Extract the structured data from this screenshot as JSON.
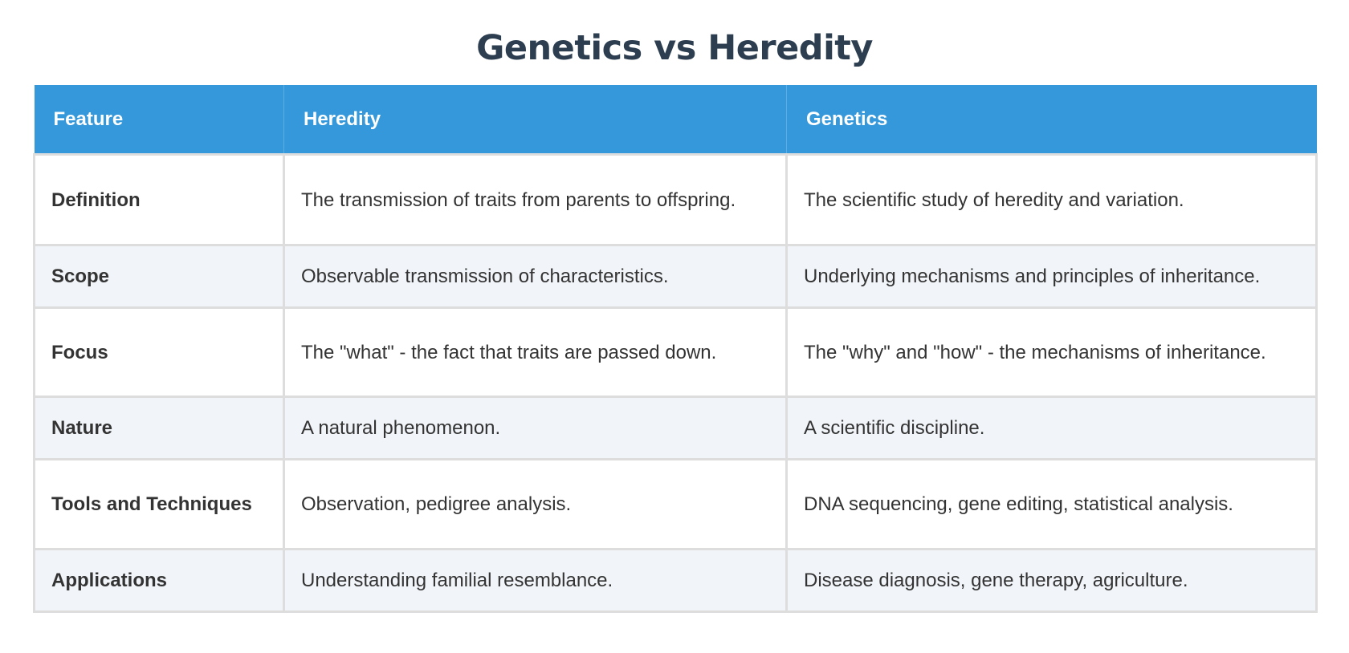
{
  "page": {
    "title": "Genetics vs Heredity"
  },
  "colors": {
    "title": "#2c3e50",
    "header_bg": "#3498db",
    "header_text": "#ffffff",
    "alt_row_bg": "#f1f4f8",
    "border": "#dddddd",
    "body_text": "#333333"
  },
  "table": {
    "headers": [
      "Feature",
      "Heredity",
      "Genetics"
    ],
    "rows": [
      {
        "feature": "Definition",
        "heredity": "The transmission of traits from parents to offspring.",
        "genetics": "The scientific study of heredity and variation."
      },
      {
        "feature": "Scope",
        "heredity": "Observable transmission of characteristics.",
        "genetics": "Underlying mechanisms and principles of inheritance."
      },
      {
        "feature": "Focus",
        "heredity": "The \"what\" - the fact that traits are passed down.",
        "genetics": "The \"why\" and \"how\" - the mechanisms of inheritance."
      },
      {
        "feature": "Nature",
        "heredity": "A natural phenomenon.",
        "genetics": "A scientific discipline."
      },
      {
        "feature": "Tools and Techniques",
        "heredity": "Observation, pedigree analysis.",
        "genetics": "DNA sequencing, gene editing, statistical analysis."
      },
      {
        "feature": "Applications",
        "heredity": "Understanding familial resemblance.",
        "genetics": "Disease diagnosis, gene therapy, agriculture."
      }
    ]
  }
}
